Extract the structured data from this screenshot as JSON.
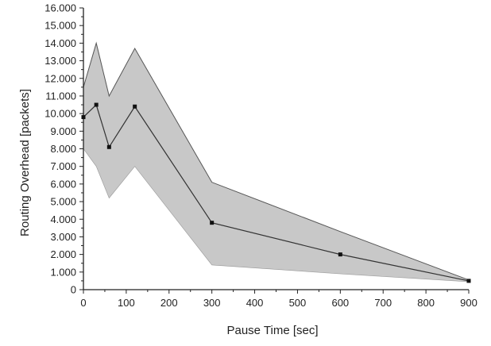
{
  "chart_data": {
    "type": "line",
    "title": "",
    "xlabel": "Pause Time [sec]",
    "ylabel": "Routing Overhead [packets]",
    "xlim": [
      0,
      900
    ],
    "ylim": [
      0,
      16000
    ],
    "x_ticks": [
      0,
      100,
      200,
      300,
      400,
      500,
      600,
      700,
      800,
      900
    ],
    "x_tick_labels": [
      "0",
      "100",
      "200",
      "300",
      "400",
      "500",
      "600",
      "700",
      "800",
      "900"
    ],
    "y_ticks": [
      0,
      1000,
      2000,
      3000,
      4000,
      5000,
      6000,
      7000,
      8000,
      9000,
      10000,
      11000,
      12000,
      13000,
      14000,
      15000,
      16000
    ],
    "y_tick_labels": [
      "0",
      "1.000",
      "2.000",
      "3.000",
      "4.000",
      "5.000",
      "6.000",
      "7.000",
      "8.000",
      "9.000",
      "10.000",
      "11.000",
      "12.000",
      "13.000",
      "14.000",
      "15.000",
      "16.000"
    ],
    "grid": false,
    "series": [
      {
        "x": [
          0,
          30,
          60,
          120,
          300,
          600,
          900
        ],
        "values": [
          9800,
          10500,
          8100,
          10400,
          3800,
          2000,
          500
        ],
        "upper": [
          11500,
          14000,
          11000,
          13700,
          6100,
          3300,
          550
        ],
        "lower": [
          8000,
          7000,
          5200,
          7000,
          1400,
          900,
          450
        ],
        "line_color": "#333333",
        "band_color": "#c8c8c8",
        "band_edge_color": "#555555",
        "marker": "square"
      }
    ]
  }
}
